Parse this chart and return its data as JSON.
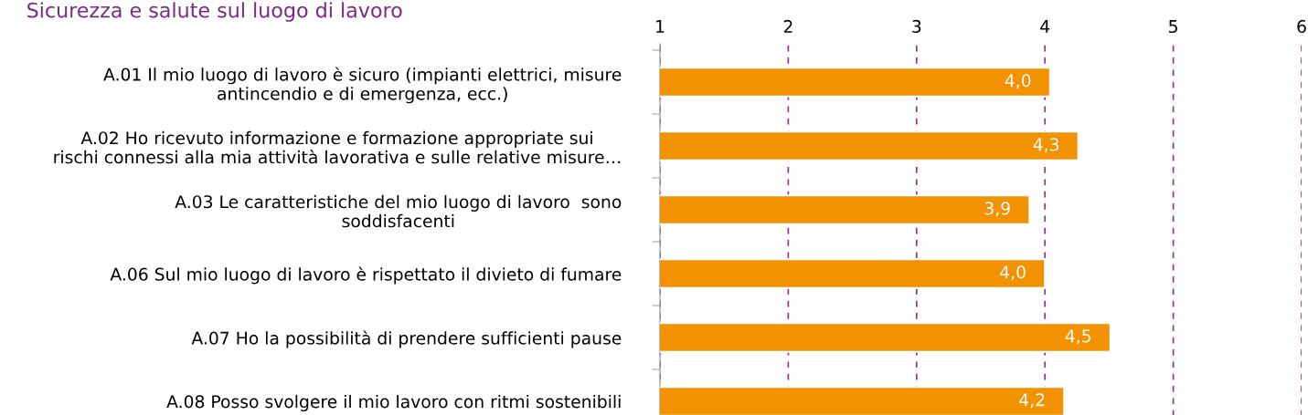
{
  "chart_data": {
    "type": "bar",
    "orientation": "horizontal",
    "title": "Sicurezza e salute sul luogo di lavoro",
    "categories": [
      "A.01 Il mio luogo di lavoro è sicuro (impianti elettrici, misure\nantincendio e di emergenza, ecc.)",
      "A.02 Ho ricevuto informazione e formazione appropriate sui\nrischi connessi alla mia attività lavorativa e sulle relative misure…",
      "A.03 Le caratteristiche del mio luogo di lavoro  sono\nsoddisfacenti",
      "A.06 Sul mio luogo di lavoro è rispettato il divieto di fumare",
      "A.07 Ho la possibilità di prendere sufficienti pause",
      "A.08 Posso svolgere il mio lavoro con ritmi sostenibili"
    ],
    "values": [
      4.04,
      4.26,
      3.88,
      4.0,
      4.51,
      4.15
    ],
    "value_labels": [
      "4,0",
      "4,3",
      "3,9",
      "4,0",
      "4,5",
      "4,2"
    ],
    "color": "#f39200",
    "xlim": [
      1,
      6
    ],
    "xticks": [
      1,
      2,
      3,
      4,
      5,
      6
    ],
    "grid": "x"
  }
}
